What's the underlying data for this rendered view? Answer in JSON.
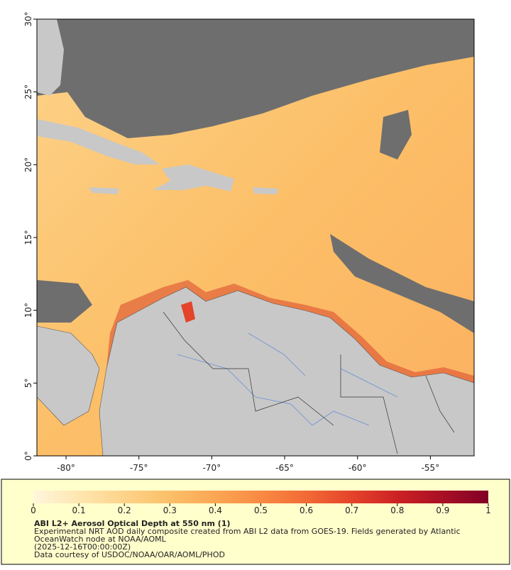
{
  "map": {
    "xlim": [
      -82,
      -52
    ],
    "ylim": [
      0,
      30
    ],
    "xticks": [
      {
        "value": -80,
        "label": "-80°"
      },
      {
        "value": -75,
        "label": "-75°"
      },
      {
        "value": -70,
        "label": "-70°"
      },
      {
        "value": -65,
        "label": "-65°"
      },
      {
        "value": -60,
        "label": "-60°"
      },
      {
        "value": -55,
        "label": "-55°"
      }
    ],
    "yticks": [
      {
        "value": 0,
        "label": "0°"
      },
      {
        "value": 5,
        "label": "5°"
      },
      {
        "value": 10,
        "label": "10°"
      },
      {
        "value": 15,
        "label": "15°"
      },
      {
        "value": 20,
        "label": "20°"
      },
      {
        "value": 25,
        "label": "25°"
      },
      {
        "value": 30,
        "label": "30°"
      }
    ]
  },
  "colorbar": {
    "lim": [
      0,
      1
    ],
    "ticks": [
      0,
      0.1,
      0.2,
      0.3,
      0.4,
      0.5,
      0.6,
      0.7,
      0.8,
      0.9,
      1
    ],
    "colors": [
      "#fff6dc",
      "#fee6b0",
      "#fdd38a",
      "#fcbf68",
      "#fba653",
      "#f88a43",
      "#f26a36",
      "#e4442a",
      "#cc2124",
      "#a90f25",
      "#800026"
    ]
  },
  "caption": {
    "title": "ABI L2+ Aerosol Optical Depth at 550 nm (1)",
    "lines": [
      "Experimental NRT AOD daily composite created from ABI L2 data from GOES-19. Fields generated by Atlantic",
      "OceanWatch node at NOAA/AOML",
      "(2025-12-16T00:00:00Z)",
      "Data courtesy of USDOC/NOAA/OAR/AOML/PHOD"
    ]
  }
}
